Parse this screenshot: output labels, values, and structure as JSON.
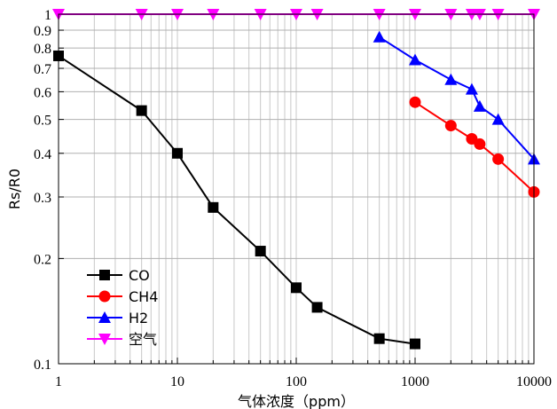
{
  "chart_data": {
    "type": "line",
    "xscale": "log",
    "yscale": "log",
    "xlabel": "气体浓度（ppm）",
    "ylabel": "Rs/R0",
    "xlim": [
      1,
      10000
    ],
    "ylim": [
      0.1,
      1
    ],
    "grid": true,
    "legend_position": "bottom-left",
    "x_tick_labels": [
      "1",
      "10",
      "100",
      "1000",
      "10000"
    ],
    "y_tick_labels": [
      "0.1",
      "0.2",
      "0.3",
      "0.4",
      "0.5",
      "0.6",
      "0.7",
      "0.8",
      "0.9",
      "1"
    ],
    "series": [
      {
        "name": "CO",
        "color": "#000000",
        "marker": "square",
        "x": [
          1,
          5,
          10,
          20,
          50,
          100,
          150,
          500,
          1000
        ],
        "y": [
          0.76,
          0.53,
          0.4,
          0.28,
          0.21,
          0.165,
          0.145,
          0.118,
          0.114
        ]
      },
      {
        "name": "CH4",
        "color": "#ff0000",
        "marker": "circle",
        "x": [
          1000,
          2000,
          3000,
          3500,
          5000,
          10000
        ],
        "y": [
          0.56,
          0.48,
          0.44,
          0.425,
          0.385,
          0.31
        ]
      },
      {
        "name": "H2",
        "color": "#0000ff",
        "marker": "triangle-up",
        "x": [
          500,
          1000,
          2000,
          3000,
          3500,
          5000,
          10000
        ],
        "y": [
          0.86,
          0.74,
          0.65,
          0.61,
          0.545,
          0.5,
          0.385
        ]
      },
      {
        "name": "空气",
        "color": "#ff00ff",
        "marker": "triangle-down",
        "x": [
          1,
          5,
          10,
          20,
          50,
          100,
          150,
          500,
          1000,
          2000,
          3000,
          3500,
          5000,
          10000
        ],
        "y": [
          1,
          1,
          1,
          1,
          1,
          1,
          1,
          1,
          1,
          1,
          1,
          1,
          1,
          1
        ]
      }
    ]
  }
}
